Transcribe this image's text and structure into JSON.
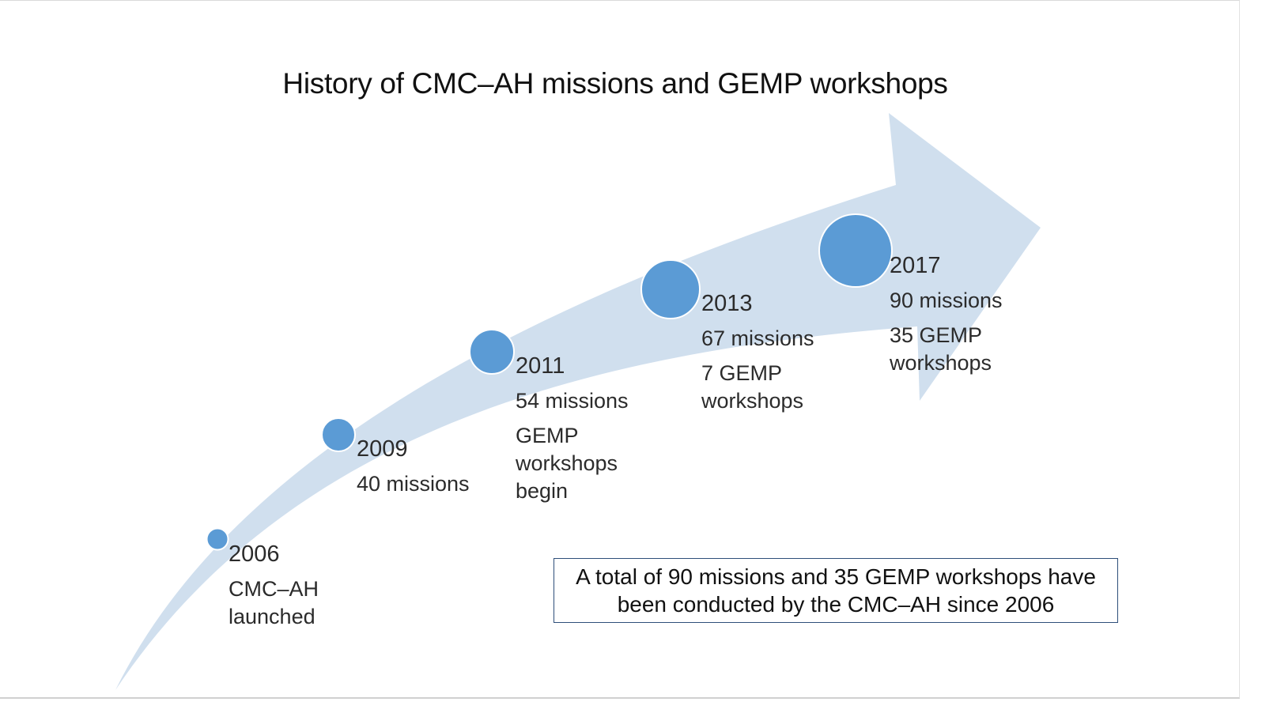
{
  "title": "History of CMC–AH missions and GEMP workshops",
  "colors": {
    "arrow": "#d0dfee",
    "circle": "#5b9bd5",
    "circle_stroke": "#ffffff",
    "box_border": "#2e4f7a"
  },
  "milestones": [
    {
      "year": "2006",
      "lines": [
        "CMC–AH\nlaunched"
      ]
    },
    {
      "year": "2009",
      "lines": [
        "40 missions"
      ]
    },
    {
      "year": "2011",
      "lines": [
        "54 missions",
        "GEMP\nworkshops\nbegin"
      ]
    },
    {
      "year": "2013",
      "lines": [
        "67 missions",
        "7 GEMP\nworkshops"
      ]
    },
    {
      "year": "2017",
      "lines": [
        "90 missions",
        "35 GEMP\nworkshops"
      ]
    }
  ],
  "summary": "A total of 90 missions and 35 GEMP workshops have been conducted by the CMC–AH since 2006"
}
